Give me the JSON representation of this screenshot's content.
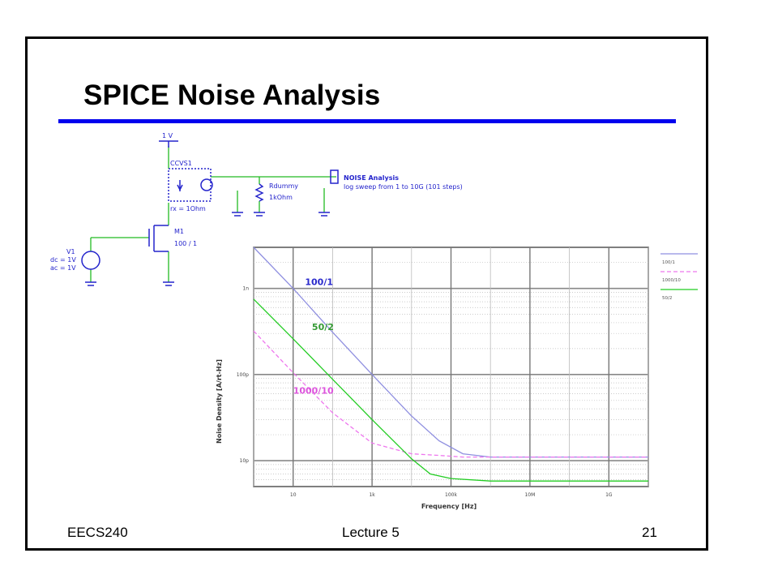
{
  "slide": {
    "title": "SPICE Noise Analysis",
    "footer_left": "EECS240",
    "footer_center": "Lecture 5",
    "footer_right": "21"
  },
  "schematic": {
    "supply_label": "1 V",
    "ccvs_name": "CCVS1",
    "ccvs_param": "rx = 1Ohm",
    "resistor_name": "Rdummy",
    "resistor_value": "1kOhm",
    "analysis_name": "NOISE Analysis",
    "analysis_desc": "log sweep from 1 to 10G (101 steps)",
    "transistor_name": "M1",
    "transistor_size": "100 / 1",
    "source_name": "V1",
    "source_dc": "dc = 1V",
    "source_ac": "ac = 1V"
  },
  "chart_data": {
    "type": "line",
    "xlabel": "Frequency  [Hz]",
    "ylabel": "Noise Density  [A/rt-Hz]",
    "x_scale": "log",
    "y_scale": "log",
    "xlim": [
      1,
      10000000000
    ],
    "ylim": [
      5e-12,
      3e-09
    ],
    "x_ticks": [
      {
        "value": 10,
        "label": "10"
      },
      {
        "value": 1000,
        "label": "1k"
      },
      {
        "value": 100000,
        "label": "100k"
      },
      {
        "value": 10000000,
        "label": "10M"
      },
      {
        "value": 1000000000,
        "label": "1G"
      }
    ],
    "y_ticks": [
      {
        "value": 1e-09,
        "label": "1n"
      },
      {
        "value": 1e-10,
        "label": "100p"
      },
      {
        "value": 1e-11,
        "label": "10p"
      }
    ],
    "grid": true,
    "legend_position": "right",
    "series": [
      {
        "name": "100/1",
        "color": "#8f8fe0",
        "dash": "",
        "x": [
          1,
          10,
          100,
          1000,
          10000,
          50000,
          200000,
          1000000,
          10000000,
          10000000000
        ],
        "y": [
          3e-09,
          1e-09,
          3.1e-10,
          1e-10,
          3.3e-11,
          1.7e-11,
          1.2e-11,
          1.1e-11,
          1.1e-11,
          1.1e-11
        ]
      },
      {
        "name": "1000/10",
        "color": "#ee77ee",
        "dash": "5,3",
        "x": [
          1,
          10,
          100,
          1000,
          10000,
          50000,
          200000,
          1000000,
          10000000,
          10000000000
        ],
        "y": [
          3.2e-10,
          1.05e-10,
          3.6e-11,
          1.6e-11,
          1.2e-11,
          1.15e-11,
          1.1e-11,
          1.1e-11,
          1.1e-11,
          1.1e-11
        ]
      },
      {
        "name": "50/2",
        "color": "#22cc22",
        "dash": "",
        "x": [
          1,
          10,
          100,
          1000,
          10000,
          30000,
          100000,
          1000000,
          10000000,
          10000000000
        ],
        "y": [
          7.5e-10,
          2.6e-10,
          8.8e-11,
          3e-11,
          1.05e-11,
          7e-12,
          6.2e-12,
          5.8e-12,
          5.8e-12,
          5.8e-12
        ]
      }
    ],
    "annotations": [
      {
        "text": "100/1",
        "x": 20,
        "y": 1.1e-09,
        "color": "#2a2acc"
      },
      {
        "text": "50/2",
        "x": 30,
        "y": 3.3e-10,
        "color": "#339933"
      },
      {
        "text": "1000/10",
        "x": 10,
        "y": 6e-11,
        "color": "#dd55dd"
      }
    ]
  }
}
